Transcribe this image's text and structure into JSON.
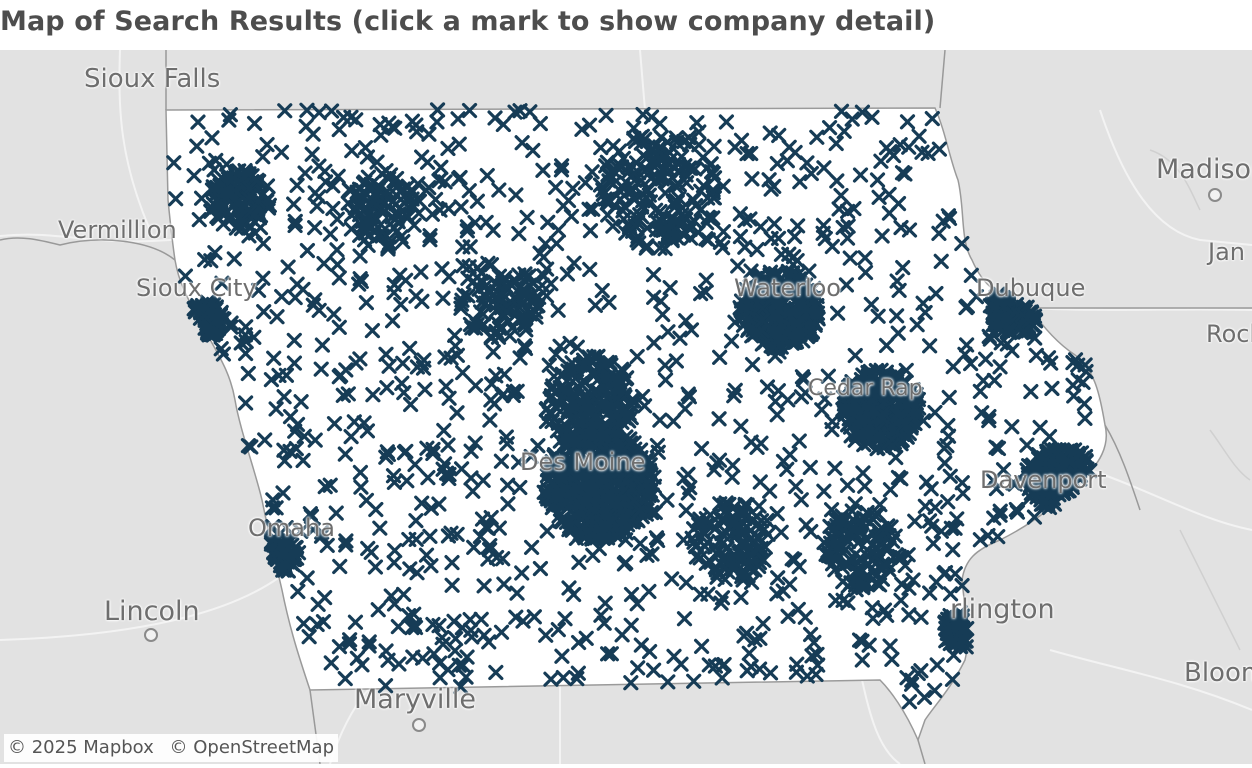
{
  "title": "Map of Search Results (click a mark to show company detail)",
  "map": {
    "background_color": "#e2e2e2",
    "state_fill": "#ffffff",
    "mark_color": "#163c56",
    "mark_icon": "x-mark-icon",
    "cities": [
      {
        "id": "sioux-falls",
        "label": "Sioux Falls"
      },
      {
        "id": "vermillion",
        "label": "Vermillion"
      },
      {
        "id": "sioux-city",
        "label": "Sioux City"
      },
      {
        "id": "omaha",
        "label": "Omaha"
      },
      {
        "id": "lincoln",
        "label": "Lincoln"
      },
      {
        "id": "maryville",
        "label": "Maryville"
      },
      {
        "id": "madison",
        "label": "Madison"
      },
      {
        "id": "janesville",
        "label": "Jan"
      },
      {
        "id": "dubuque",
        "label": "Dubuque"
      },
      {
        "id": "rockford",
        "label": "Rock"
      },
      {
        "id": "waterloo",
        "label": "Waterloo"
      },
      {
        "id": "cedar-rapids",
        "label": "Cedar Rap"
      },
      {
        "id": "des-moines",
        "label": "Des Moine"
      },
      {
        "id": "davenport",
        "label": "Davenport"
      },
      {
        "id": "burlington",
        "label": "rlington"
      },
      {
        "id": "bloomington",
        "label": "Bloom"
      }
    ]
  },
  "attribution": {
    "mapbox": "© 2025 Mapbox",
    "osm": "© OpenStreetMap"
  }
}
